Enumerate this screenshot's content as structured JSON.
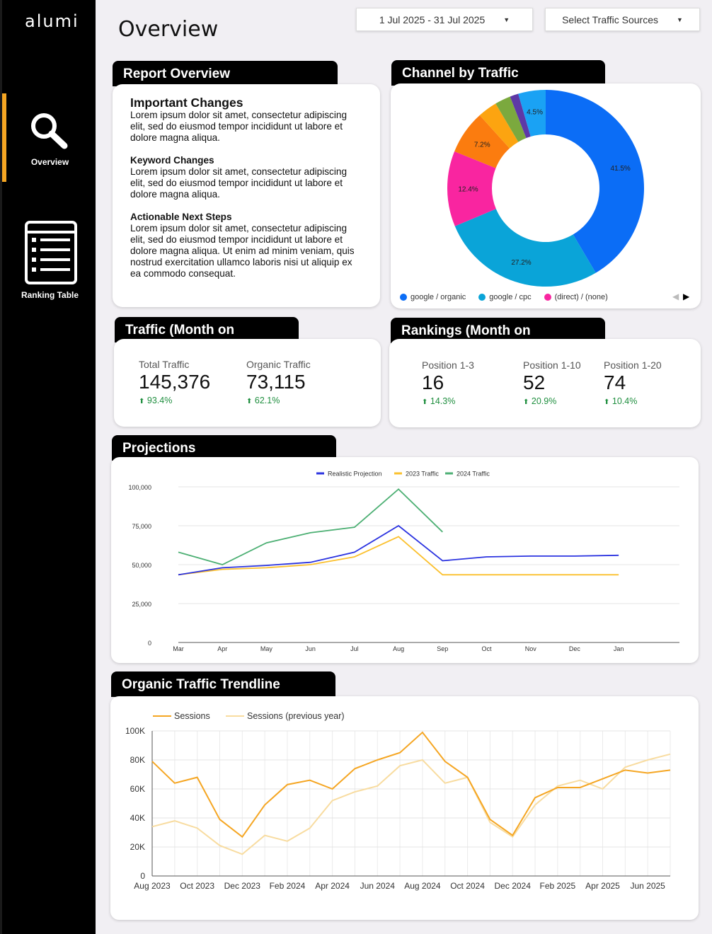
{
  "app": {
    "logo": "alumi"
  },
  "sidebar": {
    "items": [
      {
        "label": "Overview",
        "icon": "magnifier-icon",
        "active": true
      },
      {
        "label": "Ranking Table",
        "icon": "table-list-icon",
        "active": false
      }
    ],
    "accent": "#f5a623"
  },
  "header": {
    "title": "Overview",
    "date_range": "1 Jul 2025 - 31 Jul 2025",
    "traffic_sources": "Select Traffic Sources"
  },
  "report_overview": {
    "tab": "Report Overview",
    "important_title": "Important Changes",
    "important_text": "Lorem ipsum dolor sit amet, consectetur adipiscing elit, sed do eiusmod tempor incididunt ut labore et dolore magna aliqua.",
    "keyword_title": "Keyword Changes",
    "keyword_text": "Lorem ipsum dolor sit amet, consectetur adipiscing elit, sed do eiusmod tempor incididunt ut labore et dolore magna aliqua.",
    "steps_title": "Actionable Next Steps",
    "steps_text": "Lorem ipsum dolor sit amet, consectetur adipiscing elit, sed do eiusmod tempor incididunt ut labore et dolore magna aliqua. Ut enim ad minim veniam, quis nostrud exercitation ullamco laboris nisi ut aliquip ex ea commodo consequat."
  },
  "channel": {
    "tab": "Channel by Traffic",
    "legend": [
      "google / organic",
      "google / cpc",
      "(direct) / (none)"
    ]
  },
  "traffic": {
    "tab": "Traffic (Month on",
    "kpis": [
      {
        "label": "Total Traffic",
        "value": "145,376",
        "delta": "93.4%"
      },
      {
        "label": "Organic Traffic",
        "value": "73,115",
        "delta": "62.1%"
      }
    ]
  },
  "rankings": {
    "tab": "Rankings (Month on",
    "kpis": [
      {
        "label": "Position 1-3",
        "value": "16",
        "delta": "14.3%"
      },
      {
        "label": "Position 1-10",
        "value": "52",
        "delta": "20.9%"
      },
      {
        "label": "Position 1-20",
        "value": "74",
        "delta": "10.4%"
      }
    ]
  },
  "projections": {
    "tab": "Projections"
  },
  "trendline": {
    "tab": "Organic Traffic Trendline"
  },
  "chart_data": [
    {
      "type": "pie",
      "donut": true,
      "slices": [
        {
          "name": "google / organic",
          "value": 41.5,
          "label": "41.5%",
          "color": "#0b6df6"
        },
        {
          "name": "google / cpc",
          "value": 27.2,
          "label": "27.2%",
          "color": "#0aa4d8"
        },
        {
          "name": "(direct) / (none)",
          "value": 12.4,
          "label": "12.4%",
          "color": "#f925a0"
        },
        {
          "name": "",
          "value": 7.2,
          "label": "7.2%",
          "color": "#fb7c0f"
        },
        {
          "name": "",
          "value": 3.2,
          "label": "",
          "color": "#fca410"
        },
        {
          "name": "",
          "value": 2.6,
          "label": "",
          "color": "#7ba93e"
        },
        {
          "name": "",
          "value": 1.4,
          "label": "",
          "color": "#5e38a6"
        },
        {
          "name": "",
          "value": 4.5,
          "label": "4.5%",
          "color": "#1aa2f4"
        }
      ]
    },
    {
      "type": "line",
      "categories": [
        "Mar",
        "Apr",
        "May",
        "Jun",
        "Jul",
        "Aug",
        "Sep",
        "Oct",
        "Nov",
        "Dec",
        "Jan"
      ],
      "ylim": [
        0,
        100000
      ],
      "yticks": [
        0,
        25000,
        50000,
        75000,
        100000
      ],
      "ytick_labels": [
        "0",
        "25,000",
        "50,000",
        "75,000",
        "100,000"
      ],
      "legend_position": "top",
      "grid": true,
      "series": [
        {
          "name": "Realistic Projection",
          "color": "#2b33e0",
          "values": [
            43500,
            48000,
            49500,
            51500,
            58000,
            75000,
            52500,
            55000,
            55500,
            55500,
            56000
          ]
        },
        {
          "name": "2023 Traffic",
          "color": "#fbc02d",
          "values": [
            43500,
            47000,
            48000,
            50000,
            55000,
            68000,
            43500,
            43500,
            43500,
            43500,
            43500
          ]
        },
        {
          "name": "2024 Traffic",
          "color": "#4caf73",
          "values": [
            58000,
            50000,
            64000,
            70500,
            74000,
            98500,
            71000,
            null,
            null,
            null,
            null
          ]
        }
      ]
    },
    {
      "type": "line",
      "x_tick_labels": [
        "Aug 2023",
        "Oct 2023",
        "Dec 2023",
        "Feb 2024",
        "Apr 2024",
        "Jun 2024",
        "Aug 2024",
        "Oct 2024",
        "Dec 2024",
        "Feb 2025",
        "Apr 2025",
        "Jun 2025"
      ],
      "ylim": [
        0,
        100000
      ],
      "yticks": [
        0,
        20000,
        40000,
        60000,
        80000,
        100000
      ],
      "ytick_labels": [
        "0",
        "20K",
        "40K",
        "60K",
        "80K",
        "100K"
      ],
      "legend_position": "top-left",
      "grid": true,
      "x": [
        "Aug 2023",
        "Sep 2023",
        "Oct 2023",
        "Nov 2023",
        "Dec 2023",
        "Jan 2024",
        "Feb 2024",
        "Mar 2024",
        "Apr 2024",
        "May 2024",
        "Jun 2024",
        "Jul 2024",
        "Aug 2024",
        "Sep 2024",
        "Oct 2024",
        "Nov 2024",
        "Dec 2024",
        "Jan 2025",
        "Feb 2025",
        "Mar 2025",
        "Apr 2025",
        "May 2025",
        "Jun 2025",
        "Jul 2025"
      ],
      "series": [
        {
          "name": "Sessions",
          "color": "#f5a623",
          "values": [
            79000,
            64000,
            68000,
            39000,
            27000,
            49000,
            63000,
            66000,
            60000,
            74000,
            80000,
            85000,
            99000,
            79000,
            68000,
            39000,
            28000,
            54000,
            61000,
            61000,
            67000,
            73000,
            71000,
            73000
          ]
        },
        {
          "name": "Sessions (previous year)",
          "color": "#f8dca0",
          "values": [
            34000,
            38000,
            33000,
            21000,
            15000,
            28000,
            24000,
            33000,
            52000,
            58000,
            62000,
            76000,
            80000,
            64000,
            68000,
            37000,
            27000,
            49000,
            62000,
            66000,
            60000,
            75000,
            80000,
            84000
          ]
        }
      ]
    }
  ]
}
